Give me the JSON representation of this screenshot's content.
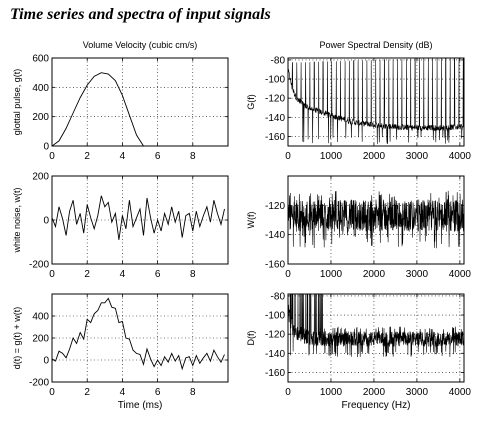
{
  "title": "Time series and spectra of input signals",
  "chart_data": [
    {
      "id": "glottal",
      "type": "line",
      "title": "Volume Velocity (cubic cm/s)",
      "xlabel": "",
      "ylabel": "glottal pulse, g(t)",
      "xlim": [
        0,
        10
      ],
      "ylim": [
        0,
        600
      ],
      "xticks": [
        0,
        2,
        4,
        6,
        8
      ],
      "yticks": [
        0,
        200,
        400,
        600
      ],
      "grid": "dotted",
      "x": [
        0,
        0.4,
        0.8,
        1.2,
        1.6,
        2.0,
        2.4,
        2.8,
        3.2,
        3.6,
        4.0,
        4.4,
        4.8,
        5.2,
        6.0,
        8.0,
        10.0
      ],
      "y": [
        0,
        35,
        120,
        225,
        330,
        415,
        475,
        500,
        490,
        445,
        345,
        210,
        75,
        0,
        0,
        0,
        0
      ]
    },
    {
      "id": "noise",
      "type": "line",
      "xlabel": "",
      "ylabel": "white noise, w(t)",
      "xlim": [
        0,
        10
      ],
      "ylim": [
        -200,
        200
      ],
      "xticks": [
        0,
        2,
        4,
        6,
        8
      ],
      "yticks": [
        -200,
        0,
        200
      ],
      "grid": "dotted",
      "x": [
        0,
        0.2,
        0.4,
        0.6,
        0.8,
        1.0,
        1.2,
        1.4,
        1.6,
        1.8,
        2.0,
        2.2,
        2.4,
        2.6,
        2.8,
        3.0,
        3.2,
        3.4,
        3.6,
        3.8,
        4.0,
        4.2,
        4.4,
        4.6,
        4.8,
        5.0,
        5.2,
        5.4,
        5.6,
        5.8,
        6.0,
        6.2,
        6.4,
        6.6,
        6.8,
        7.0,
        7.2,
        7.4,
        7.6,
        7.8,
        8.0,
        8.2,
        8.4,
        8.6,
        8.8,
        9.0,
        9.2,
        9.4,
        9.6,
        9.8
      ],
      "y": [
        10,
        -30,
        60,
        5,
        -70,
        40,
        90,
        -20,
        30,
        -60,
        70,
        10,
        -40,
        20,
        110,
        60,
        80,
        -10,
        30,
        -90,
        20,
        -40,
        90,
        -30,
        10,
        50,
        -70,
        100,
        10,
        -60,
        0,
        -50,
        30,
        -20,
        60,
        -10,
        40,
        -80,
        20,
        30,
        -50,
        40,
        -30,
        20,
        60,
        -10,
        90,
        30,
        -20,
        50
      ]
    },
    {
      "id": "sum",
      "type": "line",
      "xlabel": "Time (ms)",
      "ylabel": "d(t) = g(t) + w(t)",
      "xlim": [
        0,
        10
      ],
      "ylim": [
        -200,
        600
      ],
      "xticks": [
        0,
        2,
        4,
        6,
        8
      ],
      "yticks": [
        -200,
        0,
        200,
        400
      ],
      "grid": "dotted",
      "x": [
        0,
        0.2,
        0.4,
        0.6,
        0.8,
        1.0,
        1.2,
        1.4,
        1.6,
        1.8,
        2.0,
        2.2,
        2.4,
        2.6,
        2.8,
        3.0,
        3.2,
        3.4,
        3.6,
        3.8,
        4.0,
        4.2,
        4.4,
        4.6,
        4.8,
        5.0,
        5.2,
        5.4,
        5.6,
        5.8,
        6.0,
        6.2,
        6.4,
        6.6,
        6.8,
        7.0,
        7.2,
        7.4,
        7.6,
        7.8,
        8.0,
        8.2,
        8.4,
        8.6,
        8.8,
        9.0,
        9.2,
        9.4,
        9.6,
        9.8
      ],
      "y": [
        10,
        -10,
        80,
        60,
        20,
        100,
        200,
        150,
        250,
        190,
        370,
        340,
        420,
        450,
        520,
        520,
        560,
        480,
        470,
        340,
        350,
        200,
        190,
        90,
        60,
        50,
        -40,
        100,
        10,
        -60,
        0,
        -50,
        30,
        -20,
        60,
        -10,
        40,
        -80,
        20,
        30,
        -50,
        40,
        -30,
        20,
        60,
        -10,
        90,
        30,
        -20,
        50
      ]
    },
    {
      "id": "G",
      "type": "line",
      "title": "Power Spectral Density (dB)",
      "xlabel": "",
      "ylabel": "G(f)",
      "xlim": [
        0,
        4096
      ],
      "ylim": [
        -170,
        -78
      ],
      "xticks": [
        0,
        1000,
        2000,
        3000,
        4000
      ],
      "yticks": [
        -80,
        -100,
        -120,
        -140,
        -160
      ],
      "grid": "dotted",
      "baseline_x": [
        0,
        100,
        200,
        400,
        600,
        1000,
        1500,
        2000,
        2500,
        3000,
        3500,
        4096
      ],
      "baseline_y": [
        -90,
        -110,
        -120,
        -128,
        -132,
        -138,
        -145,
        -148,
        -150,
        -151,
        -151,
        -150
      ],
      "spike_spacing_hz": 102,
      "spike_tip_y": -83,
      "floor_y": -168
    },
    {
      "id": "W",
      "type": "line",
      "xlabel": "",
      "ylabel": "W(f)",
      "xlim": [
        0,
        4096
      ],
      "ylim": [
        -160,
        -100
      ],
      "xticks": [
        0,
        1000,
        2000,
        3000,
        4000
      ],
      "yticks": [
        -120,
        -140,
        -160
      ],
      "grid": "dotted",
      "center_y": -127,
      "low_y": -150,
      "high_y": -110
    },
    {
      "id": "D",
      "type": "line",
      "xlabel": "Frequency (Hz)",
      "ylabel": "D(f)",
      "xlim": [
        0,
        4096
      ],
      "ylim": [
        -170,
        -78
      ],
      "xticks": [
        0,
        1000,
        2000,
        3000,
        4000
      ],
      "yticks": [
        -80,
        -100,
        -120,
        -140,
        -160
      ],
      "grid": "dotted",
      "baseline_x": [
        0,
        100,
        200,
        400,
        600,
        1000,
        4096
      ],
      "baseline_y": [
        -95,
        -112,
        -118,
        -122,
        -124,
        -125,
        -125
      ],
      "noise_low_y": -138,
      "noise_high_y": -115,
      "peak_tip_y": -82
    }
  ]
}
